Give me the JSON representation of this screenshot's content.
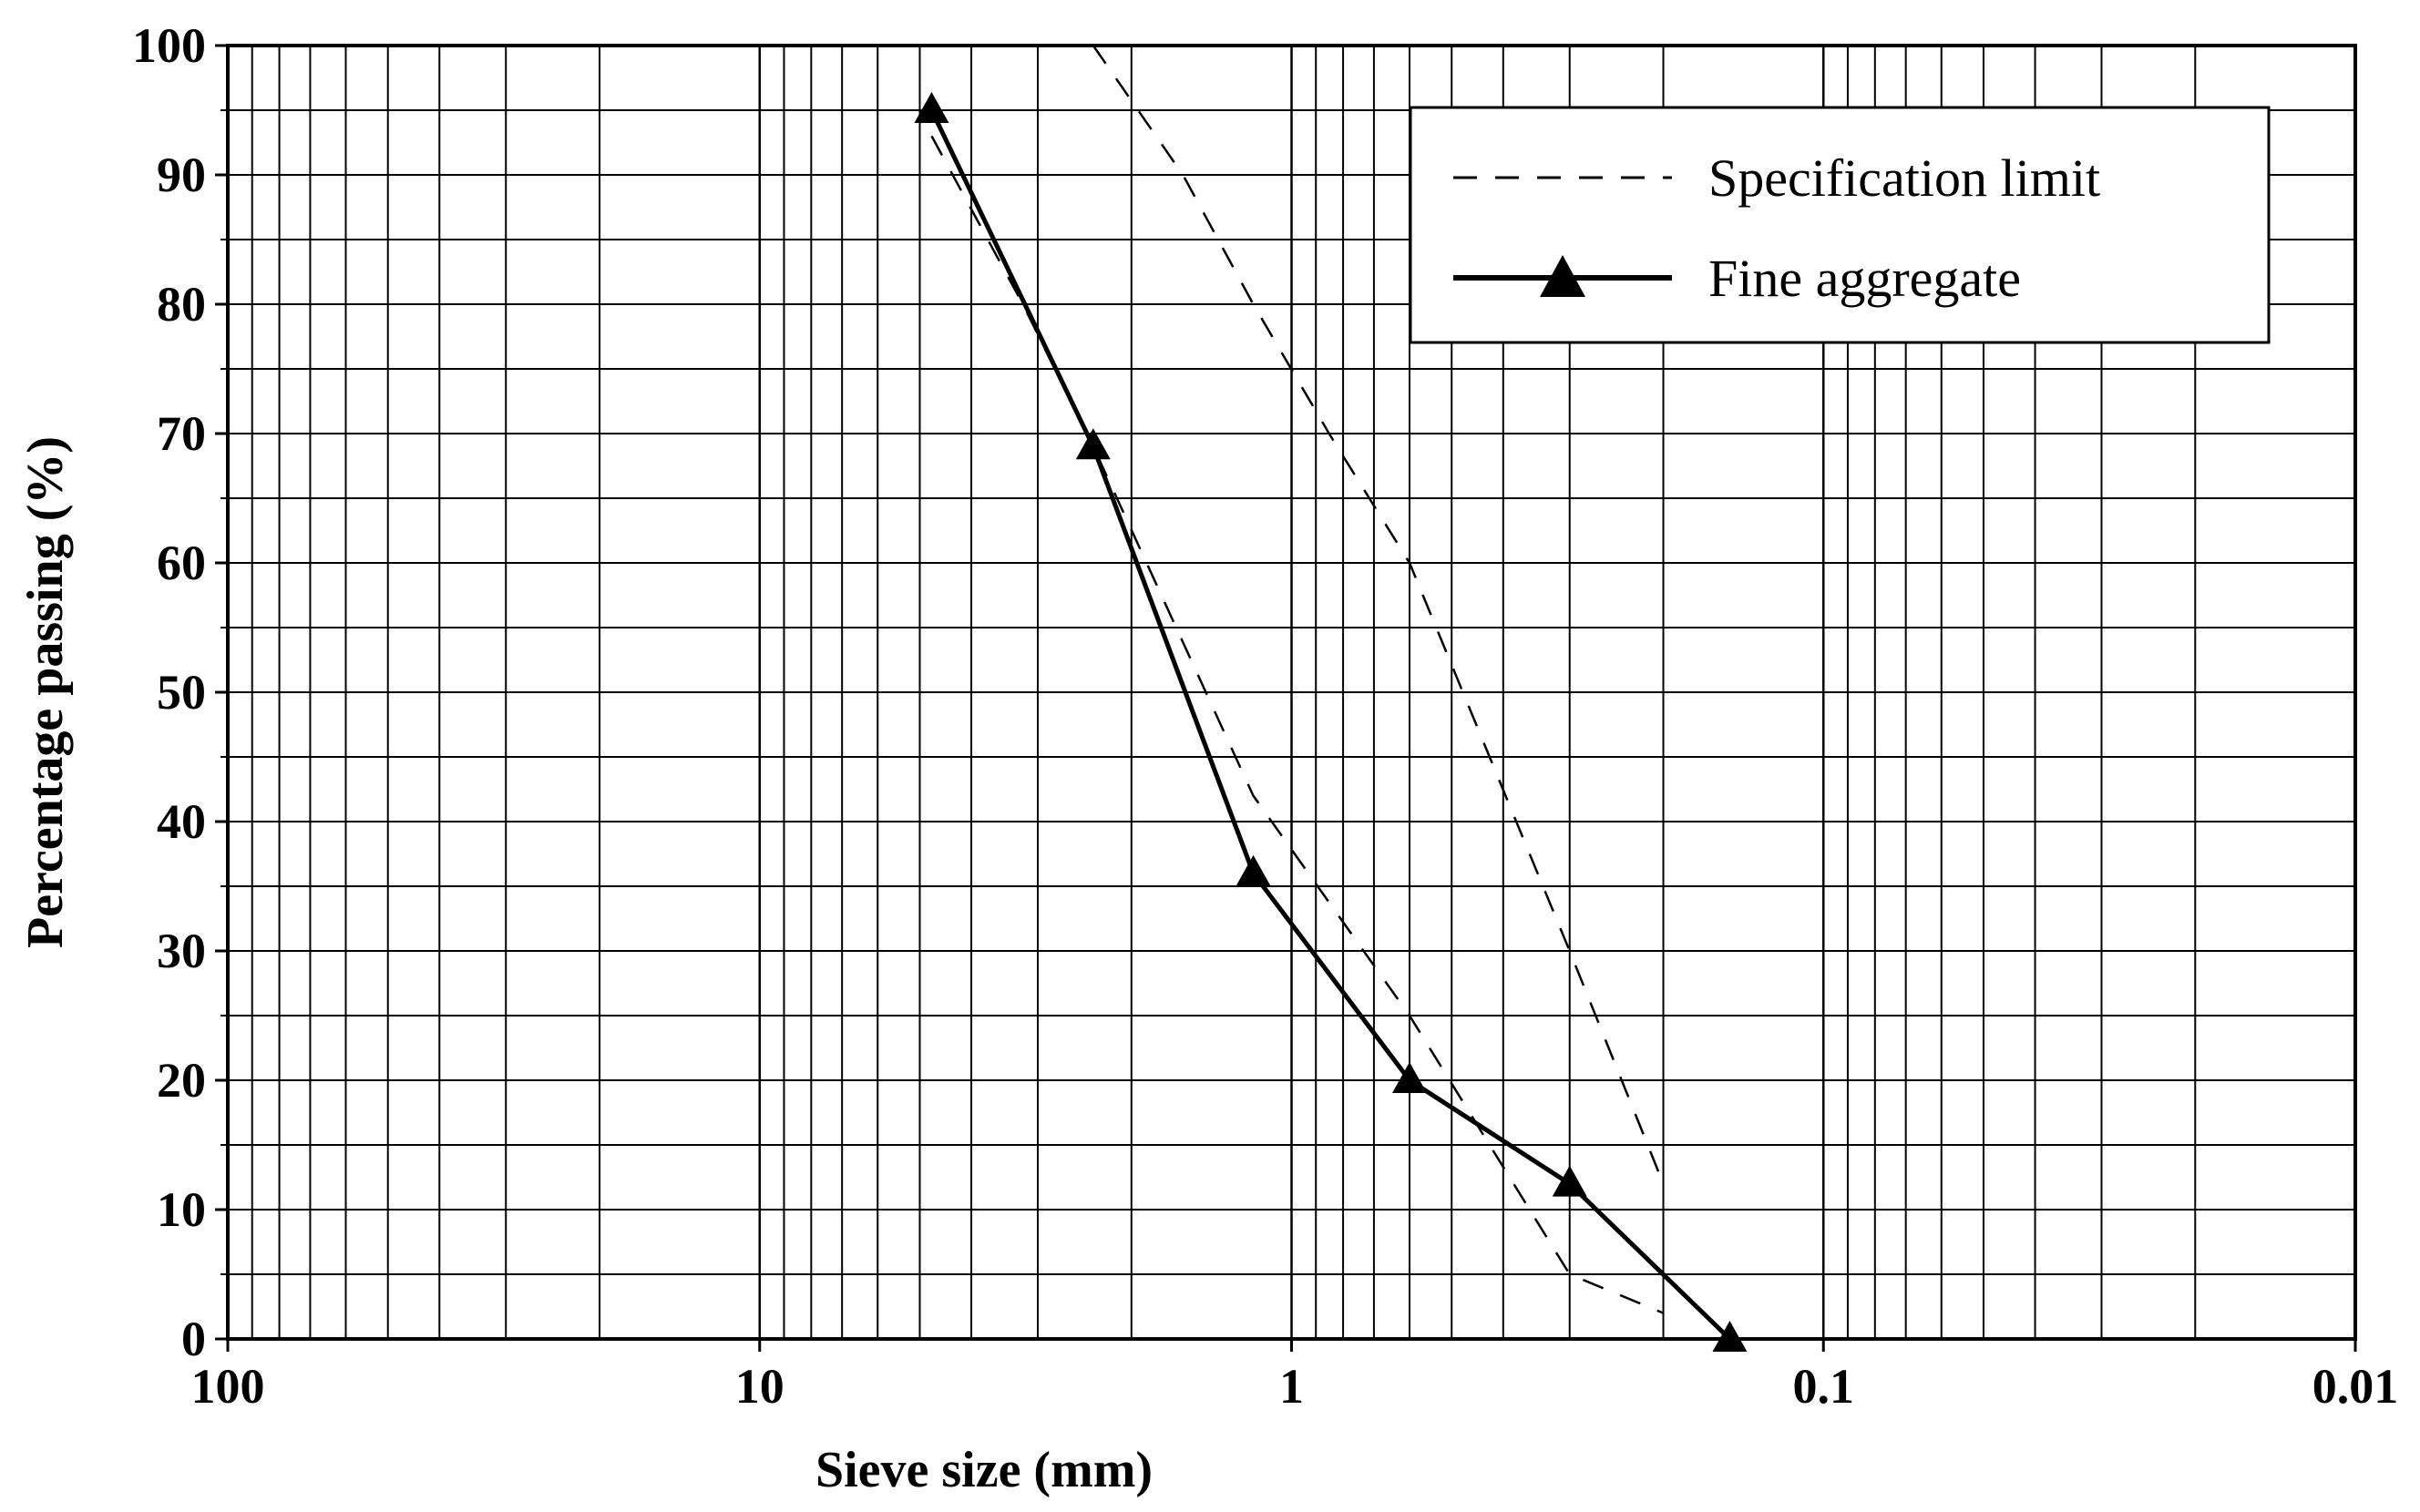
{
  "chart_data": {
    "type": "line",
    "title": "",
    "xlabel": "Sieve size (mm)",
    "ylabel": "Percentage passing (%)",
    "x_scale": "log",
    "x_reversed": true,
    "xlim": [
      100,
      0.01
    ],
    "ylim": [
      0,
      100
    ],
    "grid": true,
    "legend_position": "top-right",
    "x_tick_labels": [
      "100",
      "10",
      "1",
      "0.1",
      "0.01"
    ],
    "x_ticks": [
      100,
      10,
      1,
      0.1,
      0.01
    ],
    "y_ticks": [
      0,
      10,
      20,
      30,
      40,
      50,
      60,
      70,
      80,
      90,
      100
    ],
    "series": [
      {
        "name": "Fine aggregate",
        "style": "solid",
        "marker": "triangle",
        "color": "#000000",
        "x": [
          4.75,
          2.36,
          1.18,
          0.6,
          0.3,
          0.15
        ],
        "y": [
          95,
          69,
          36,
          20,
          12,
          0
        ]
      },
      {
        "name": "Specification limit",
        "style": "dashed",
        "color": "#000000",
        "x": [
          4.75,
          3.2,
          2.36,
          1.18,
          0.6,
          0.3,
          0.2
        ],
        "y": [
          93,
          80,
          69,
          42,
          25,
          5,
          2
        ]
      },
      {
        "name": "",
        "style": "dashed",
        "color": "#000000",
        "x": [
          2.36,
          1.6,
          1.18,
          0.85,
          0.6,
          0.3,
          0.2
        ],
        "y": [
          100,
          90,
          80,
          70,
          60,
          30,
          12
        ]
      }
    ]
  },
  "legend": {
    "items": [
      {
        "label": "Specification limit",
        "style": "dashed"
      },
      {
        "label": "Fine aggregate",
        "style": "solid-triangle"
      }
    ]
  }
}
